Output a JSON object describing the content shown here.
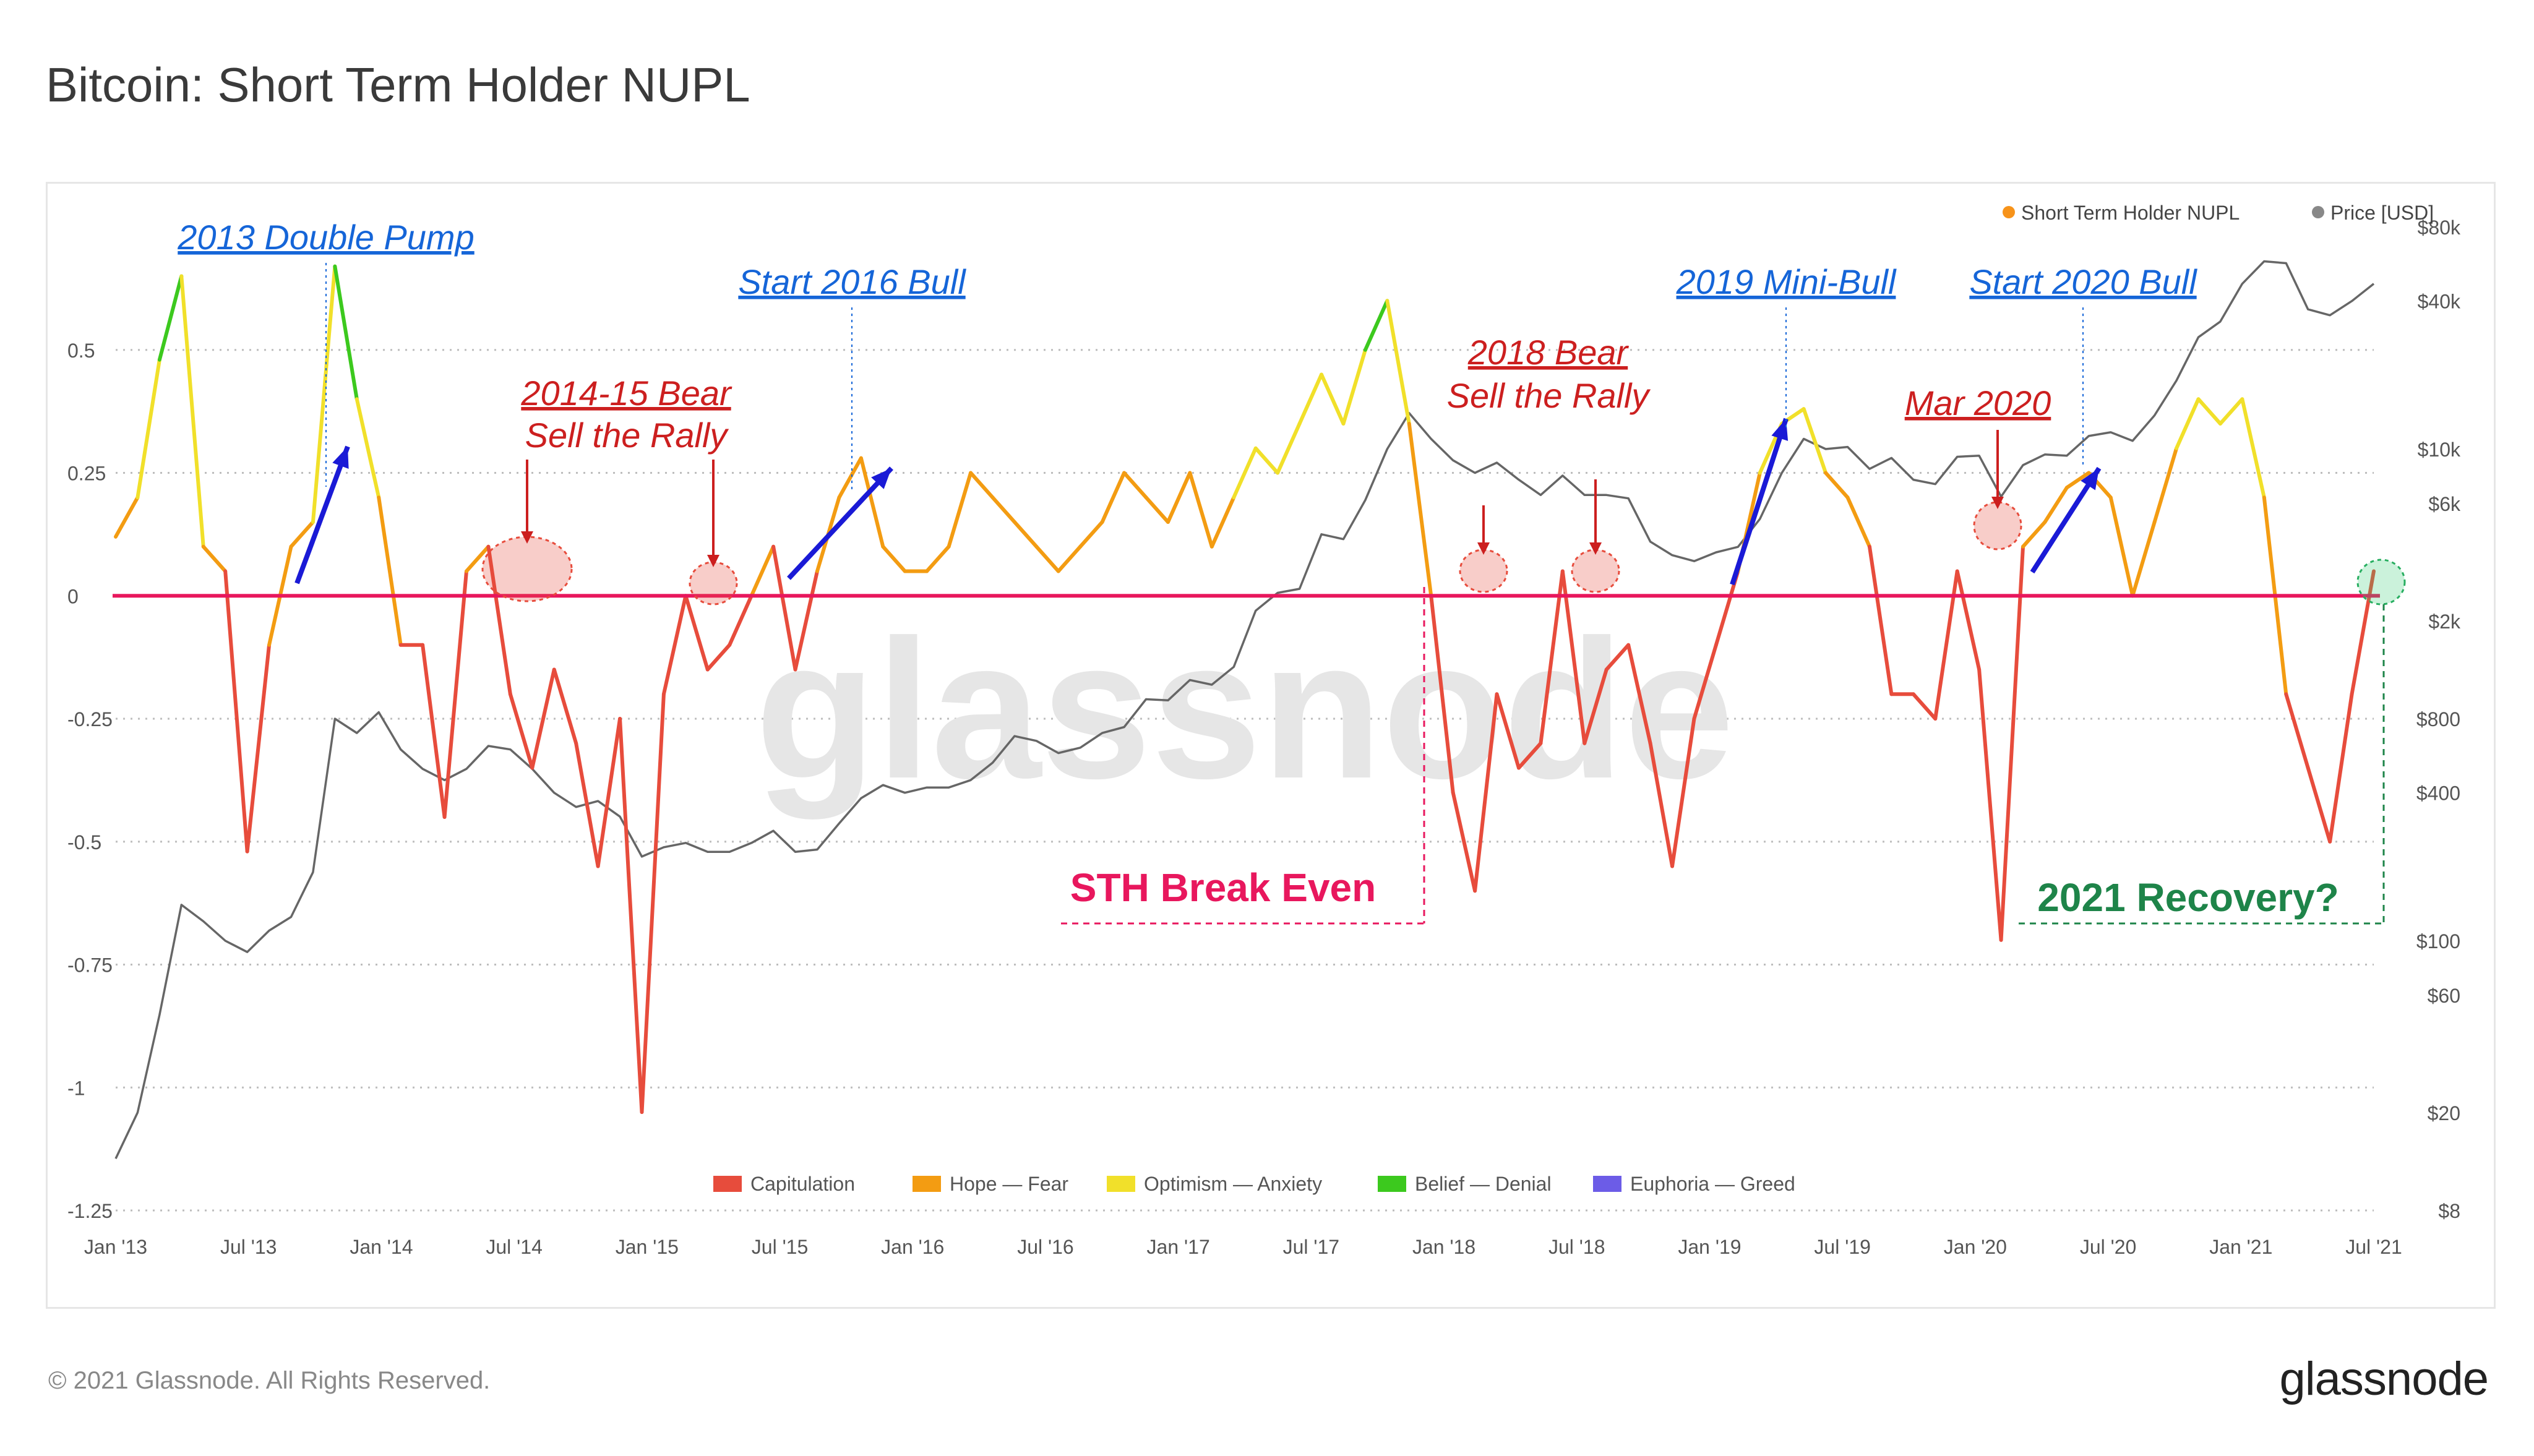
{
  "page": {
    "title": "Bitcoin: Short Term Holder NUPL",
    "copyright": "© 2021 Glassnode. All Rights Reserved.",
    "logo": "glassnode",
    "watermark": "glassnode"
  },
  "chart_data": {
    "type": "line",
    "title": "Bitcoin: Short Term Holder NUPL",
    "legend_top": [
      {
        "name": "Short Term Holder NUPL",
        "color": "#f7931a"
      },
      {
        "name": "Price [USD]",
        "color": "#888888"
      }
    ],
    "legend_bottom": [
      {
        "name": "Capitulation",
        "color": "#e74c3c"
      },
      {
        "name": "Hope — Fear",
        "color": "#f39c12"
      },
      {
        "name": "Optimism — Anxiety",
        "color": "#f1e02a"
      },
      {
        "name": "Belief — Denial",
        "color": "#3cc91e"
      },
      {
        "name": "Euphoria — Greed",
        "color": "#6c5ce7"
      }
    ],
    "x_ticks": [
      "Jan '13",
      "Jul '13",
      "Jan '14",
      "Jul '14",
      "Jan '15",
      "Jul '15",
      "Jan '16",
      "Jul '16",
      "Jan '17",
      "Jul '17",
      "Jan '18",
      "Jul '18",
      "Jan '19",
      "Jul '19",
      "Jan '20",
      "Jul '20",
      "Jan '21",
      "Jul '21"
    ],
    "y_left": {
      "ticks": [
        {
          "v": 0.5,
          "label": "0.5"
        },
        {
          "v": 0.25,
          "label": "0.25"
        },
        {
          "v": 0,
          "label": "0"
        },
        {
          "v": -0.25,
          "label": "-0.25"
        },
        {
          "v": -0.5,
          "label": "-0.5"
        },
        {
          "v": -0.75,
          "label": "-0.75"
        },
        {
          "v": -1,
          "label": "-1"
        },
        {
          "v": -1.25,
          "label": "-1.25"
        }
      ],
      "range": [
        -1.25,
        0.75
      ]
    },
    "y_right": {
      "scale": "log",
      "ticks": [
        {
          "v": 80000,
          "label": "$80k"
        },
        {
          "v": 40000,
          "label": "$40k"
        },
        {
          "v": 10000,
          "label": "$10k"
        },
        {
          "v": 6000,
          "label": "$6k"
        },
        {
          "v": 2000,
          "label": "$2k"
        },
        {
          "v": 800,
          "label": "$800"
        },
        {
          "v": 400,
          "label": "$400"
        },
        {
          "v": 100,
          "label": "$100"
        },
        {
          "v": 60,
          "label": "$60"
        },
        {
          "v": 20,
          "label": "$20"
        },
        {
          "v": 8,
          "label": "$8"
        }
      ],
      "range": [
        8,
        80000
      ]
    },
    "x_range": [
      "2013-01",
      "2021-08"
    ],
    "nupl_zones": [
      {
        "min": -9,
        "max": 0,
        "color": "#e74c3c"
      },
      {
        "min": 0,
        "max": 0.25,
        "color": "#f39c12"
      },
      {
        "min": 0.25,
        "max": 0.5,
        "color": "#f1e02a"
      },
      {
        "min": 0.5,
        "max": 0.75,
        "color": "#3cc91e"
      },
      {
        "min": 0.75,
        "max": 9,
        "color": "#6c5ce7"
      }
    ],
    "series": [
      {
        "name": "Short Term Holder NUPL",
        "x": [
          "2013-01",
          "2013-02",
          "2013-03",
          "2013-04",
          "2013-05",
          "2013-06",
          "2013-07",
          "2013-08",
          "2013-09",
          "2013-10",
          "2013-11",
          "2013-12",
          "2014-01",
          "2014-02",
          "2014-03",
          "2014-04",
          "2014-05",
          "2014-06",
          "2014-07",
          "2014-08",
          "2014-09",
          "2014-10",
          "2014-11",
          "2014-12",
          "2015-01",
          "2015-02",
          "2015-03",
          "2015-04",
          "2015-05",
          "2015-06",
          "2015-07",
          "2015-08",
          "2015-09",
          "2015-10",
          "2015-11",
          "2015-12",
          "2016-01",
          "2016-02",
          "2016-03",
          "2016-04",
          "2016-05",
          "2016-06",
          "2016-07",
          "2016-08",
          "2016-09",
          "2016-10",
          "2016-11",
          "2016-12",
          "2017-01",
          "2017-02",
          "2017-03",
          "2017-04",
          "2017-05",
          "2017-06",
          "2017-07",
          "2017-08",
          "2017-09",
          "2017-10",
          "2017-11",
          "2017-12",
          "2018-01",
          "2018-02",
          "2018-03",
          "2018-04",
          "2018-05",
          "2018-06",
          "2018-07",
          "2018-08",
          "2018-09",
          "2018-10",
          "2018-11",
          "2018-12",
          "2019-01",
          "2019-02",
          "2019-03",
          "2019-04",
          "2019-05",
          "2019-06",
          "2019-07",
          "2019-08",
          "2019-09",
          "2019-10",
          "2019-11",
          "2019-12",
          "2020-01",
          "2020-02",
          "2020-03",
          "2020-04",
          "2020-05",
          "2020-06",
          "2020-07",
          "2020-08",
          "2020-09",
          "2020-10",
          "2020-11",
          "2020-12",
          "2021-01",
          "2021-02",
          "2021-03",
          "2021-04",
          "2021-05",
          "2021-06",
          "2021-07",
          "2021-08"
        ],
        "values": [
          0.12,
          0.2,
          0.48,
          0.65,
          0.1,
          0.05,
          -0.52,
          -0.1,
          0.1,
          0.15,
          0.67,
          0.4,
          0.2,
          -0.1,
          -0.1,
          -0.45,
          0.05,
          0.1,
          -0.2,
          -0.35,
          -0.15,
          -0.3,
          -0.55,
          -0.25,
          -1.05,
          -0.2,
          0.0,
          -0.15,
          -0.1,
          0.0,
          0.1,
          -0.15,
          0.05,
          0.2,
          0.28,
          0.1,
          0.05,
          0.05,
          0.1,
          0.25,
          0.2,
          0.15,
          0.1,
          0.05,
          0.1,
          0.15,
          0.25,
          0.2,
          0.15,
          0.25,
          0.1,
          0.2,
          0.3,
          0.25,
          0.35,
          0.45,
          0.35,
          0.5,
          0.6,
          0.35,
          0.0,
          -0.4,
          -0.6,
          -0.2,
          -0.35,
          -0.3,
          0.05,
          -0.3,
          -0.15,
          -0.1,
          -0.3,
          -0.55,
          -0.25,
          -0.1,
          0.05,
          0.25,
          0.35,
          0.38,
          0.25,
          0.2,
          0.1,
          -0.2,
          -0.2,
          -0.25,
          0.05,
          -0.15,
          -0.7,
          0.1,
          0.15,
          0.22,
          0.25,
          0.2,
          0.0,
          0.15,
          0.3,
          0.4,
          0.35,
          0.4,
          0.2,
          -0.2,
          -0.35,
          -0.5,
          -0.2,
          0.05
        ]
      },
      {
        "name": "Price [USD]",
        "x": [
          "2013-01",
          "2013-02",
          "2013-03",
          "2013-04",
          "2013-05",
          "2013-06",
          "2013-07",
          "2013-08",
          "2013-09",
          "2013-10",
          "2013-11",
          "2013-12",
          "2014-01",
          "2014-02",
          "2014-03",
          "2014-04",
          "2014-05",
          "2014-06",
          "2014-07",
          "2014-08",
          "2014-09",
          "2014-10",
          "2014-11",
          "2014-12",
          "2015-01",
          "2015-02",
          "2015-03",
          "2015-04",
          "2015-05",
          "2015-06",
          "2015-07",
          "2015-08",
          "2015-09",
          "2015-10",
          "2015-11",
          "2015-12",
          "2016-01",
          "2016-02",
          "2016-03",
          "2016-04",
          "2016-05",
          "2016-06",
          "2016-07",
          "2016-08",
          "2016-09",
          "2016-10",
          "2016-11",
          "2016-12",
          "2017-01",
          "2017-02",
          "2017-03",
          "2017-04",
          "2017-05",
          "2017-06",
          "2017-07",
          "2017-08",
          "2017-09",
          "2017-10",
          "2017-11",
          "2017-12",
          "2018-01",
          "2018-02",
          "2018-03",
          "2018-04",
          "2018-05",
          "2018-06",
          "2018-07",
          "2018-08",
          "2018-09",
          "2018-10",
          "2018-11",
          "2018-12",
          "2019-01",
          "2019-02",
          "2019-03",
          "2019-04",
          "2019-05",
          "2019-06",
          "2019-07",
          "2019-08",
          "2019-09",
          "2019-10",
          "2019-11",
          "2019-12",
          "2020-01",
          "2020-02",
          "2020-03",
          "2020-04",
          "2020-05",
          "2020-06",
          "2020-07",
          "2020-08",
          "2020-09",
          "2020-10",
          "2020-11",
          "2020-12",
          "2021-01",
          "2021-02",
          "2021-03",
          "2021-04",
          "2021-05",
          "2021-06",
          "2021-07",
          "2021-08"
        ],
        "values": [
          13,
          20,
          50,
          140,
          120,
          100,
          90,
          110,
          125,
          190,
          800,
          700,
          850,
          600,
          500,
          450,
          500,
          620,
          600,
          500,
          400,
          350,
          370,
          320,
          220,
          240,
          250,
          230,
          230,
          250,
          280,
          230,
          235,
          300,
          380,
          430,
          400,
          420,
          420,
          450,
          530,
          680,
          650,
          580,
          610,
          700,
          740,
          960,
          950,
          1150,
          1100,
          1300,
          2200,
          2600,
          2700,
          4500,
          4300,
          6200,
          10000,
          14000,
          11000,
          9000,
          8000,
          8800,
          7500,
          6500,
          7800,
          6500,
          6500,
          6300,
          4200,
          3700,
          3500,
          3800,
          4000,
          5200,
          8000,
          11000,
          10000,
          10200,
          8300,
          9200,
          7500,
          7200,
          9300,
          9400,
          6400,
          8600,
          9500,
          9400,
          11300,
          11700,
          10800,
          13700,
          19000,
          28500,
          33000,
          47000,
          58000,
          57000,
          37000,
          35000,
          40000,
          47000
        ]
      }
    ],
    "annotations": [
      {
        "text": "2013 Double Pump",
        "color": "#1565d8"
      },
      {
        "text": "2014-15 Bear",
        "color": "#cc1f1f"
      },
      {
        "text": "Sell the Rally",
        "color": "#cc1f1f"
      },
      {
        "text": "Start 2016 Bull",
        "color": "#1565d8"
      },
      {
        "text": "2018 Bear",
        "color": "#cc1f1f"
      },
      {
        "text": "Sell the Rally",
        "color": "#cc1f1f"
      },
      {
        "text": "2019 Mini-Bull",
        "color": "#1565d8"
      },
      {
        "text": "Mar 2020",
        "color": "#cc1f1f"
      },
      {
        "text": "Start 2020 Bull",
        "color": "#1565d8"
      },
      {
        "text": "STH Break Even",
        "color": "#e8175d"
      },
      {
        "text": "2021 Recovery?",
        "color": "#1e8449"
      }
    ],
    "zero_line_color": "#e8175d",
    "grid": true,
    "legend_placement": "top-right"
  }
}
